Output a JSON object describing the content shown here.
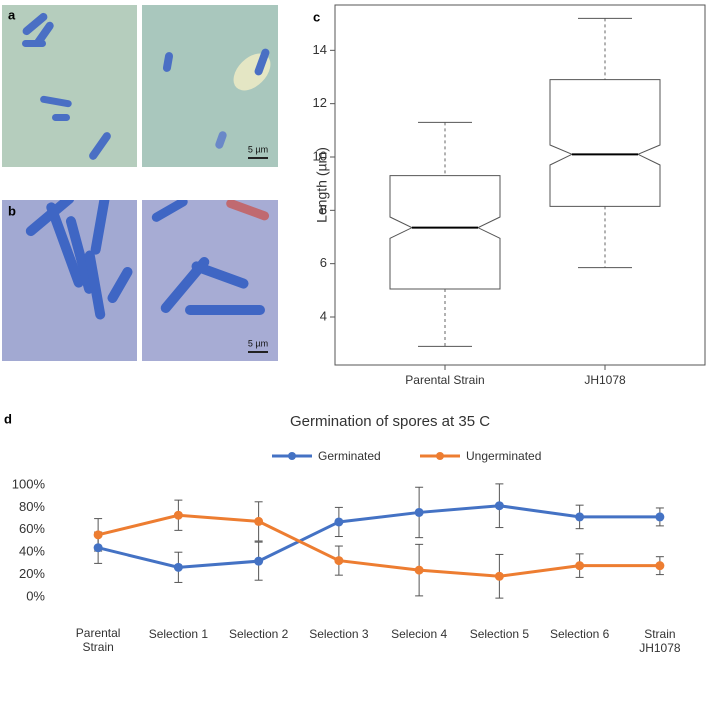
{
  "panels": {
    "labels": [
      "a",
      "b",
      "c",
      "d"
    ],
    "scale_bars": [
      "5 µm",
      "5 µm"
    ]
  },
  "chart_data": [
    {
      "type": "box",
      "y_label": "Length (µm)",
      "categories": [
        "Parental Strain",
        "JH1078"
      ],
      "boxes": [
        {
          "min": 2.9,
          "q1": 5.05,
          "notch_low": 6.95,
          "median": 7.35,
          "notch_high": 7.75,
          "q3": 9.3,
          "max": 11.3
        },
        {
          "min": 5.85,
          "q1": 8.15,
          "notch_low": 9.7,
          "median": 10.1,
          "notch_high": 10.45,
          "q3": 12.9,
          "max": 15.2
        }
      ],
      "color": "#555555",
      "ylim": [
        2.2,
        15.7
      ],
      "yticks": [
        4,
        6,
        8,
        10,
        12,
        14
      ]
    },
    {
      "type": "line",
      "title": "Germination of spores at 35 C",
      "categories": [
        "Parental Strain",
        "Selection 1",
        "Selection 2",
        "Selection 3",
        "Selecion 4",
        "Selection 5",
        "Selection 6",
        "Strain JH1078"
      ],
      "series": [
        {
          "name": "Germinated",
          "color": "#4472c4",
          "values": [
            44,
            26.5,
            32,
            67,
            75.5,
            81.5,
            71.5,
            71.5
          ],
          "errors": [
            14,
            13.5,
            17,
            13,
            22.5,
            19.5,
            10.5,
            8
          ]
        },
        {
          "name": "Ungerminated",
          "color": "#ed7d31",
          "values": [
            55.5,
            73,
            67.5,
            32.5,
            24,
            18.5,
            28,
            28
          ],
          "errors": [
            14.5,
            13.5,
            17.5,
            13,
            23,
            19.5,
            10.5,
            8
          ]
        }
      ],
      "ylim": [
        0,
        100
      ],
      "yticks": [
        {
          "value": 0,
          "label": "0%"
        },
        {
          "value": 20,
          "label": "20%"
        },
        {
          "value": 40,
          "label": "40%"
        },
        {
          "value": 60,
          "label": "60%"
        },
        {
          "value": 80,
          "label": "80%"
        },
        {
          "value": 100,
          "label": "100%"
        }
      ],
      "legend": "top",
      "grid": false
    }
  ]
}
